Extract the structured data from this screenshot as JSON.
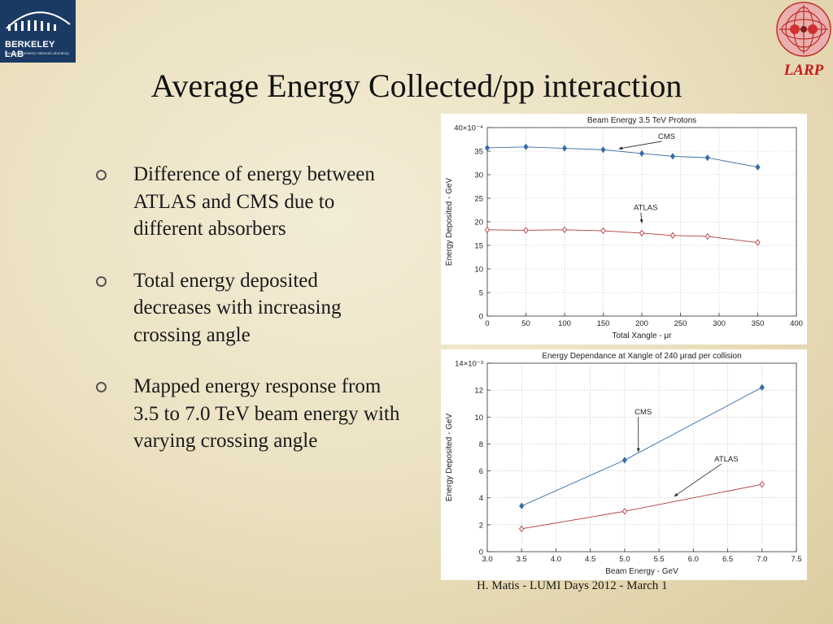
{
  "logos": {
    "berkeley_title": "BERKELEY LAB",
    "berkeley_sub": "Lawrence Berkeley National Laboratory",
    "larp": "LARP"
  },
  "slide": {
    "title": "Average Energy Collected/pp interaction",
    "bullets": [
      "Difference of energy between ATLAS and CMS due to different absorbers",
      "Total energy deposited decreases with increasing crossing angle",
      "Mapped energy response from 3.5 to 7.0 TeV beam energy with varying crossing angle"
    ],
    "footer": "H. Matis - LUMI Days 2012 -  March 1"
  },
  "chart_data": [
    {
      "type": "line",
      "title": "Beam Energy 3.5 TeV Protons",
      "xlabel": "Total Xangle - μr",
      "ylabel": "Energy Deposited - GeV",
      "xlim": [
        0,
        400
      ],
      "ylim": [
        0,
        40
      ],
      "y_exponent": "×10⁻⁴",
      "xticks": [
        0,
        50,
        100,
        150,
        200,
        250,
        300,
        350,
        400
      ],
      "yticks": [
        0,
        5,
        10,
        15,
        20,
        25,
        30,
        35,
        40
      ],
      "ytick_labels": [
        "0",
        "5",
        "10",
        "15",
        "20",
        "25",
        "30",
        "35",
        "40×10⁻⁴"
      ],
      "grid": true,
      "series": [
        {
          "name": "CMS",
          "color": "#3a6ea5",
          "marker": "diamond-filled",
          "x": [
            0,
            50,
            100,
            150,
            200,
            240,
            285,
            350
          ],
          "y": [
            35.7,
            35.9,
            35.6,
            35.3,
            34.5,
            33.9,
            33.6,
            31.6
          ]
        },
        {
          "name": "ATLAS",
          "color": "#b03a3a",
          "marker": "diamond-open",
          "x": [
            0,
            50,
            100,
            150,
            200,
            240,
            285,
            350
          ],
          "y": [
            18.3,
            18.2,
            18.3,
            18.1,
            17.6,
            17.1,
            16.9,
            15.6
          ]
        }
      ],
      "annotations": [
        {
          "text": "CMS",
          "x": 232,
          "y": 37.6,
          "arrow_to": [
            170,
            35.5
          ]
        },
        {
          "text": "ATLAS",
          "x": 205,
          "y": 22.5,
          "arrow_to": [
            200,
            19.7
          ]
        }
      ]
    },
    {
      "type": "line",
      "title": "Energy Dependance at Xangle of 240 μrad per collision",
      "xlabel": "Beam Energy - GeV",
      "ylabel": "Energy Deposited - GeV",
      "xlim": [
        3.0,
        7.5
      ],
      "ylim": [
        0,
        14
      ],
      "y_exponent": "×10⁻³",
      "xticks": [
        3.0,
        3.5,
        4.0,
        4.5,
        5.0,
        5.5,
        6.0,
        6.5,
        7.0,
        7.5
      ],
      "xtick_labels": [
        "3.0",
        "3.5",
        "4.0",
        "4.5",
        "5.0",
        "5.5",
        "6.0",
        "6.5",
        "7.0",
        "7.5"
      ],
      "yticks": [
        0,
        2,
        4,
        6,
        8,
        10,
        12,
        14
      ],
      "ytick_labels": [
        "0",
        "2",
        "4",
        "6",
        "8",
        "10",
        "12",
        "14×10⁻³"
      ],
      "grid": true,
      "series": [
        {
          "name": "CMS",
          "color": "#3a6ea5",
          "marker": "diamond-filled",
          "x": [
            3.5,
            5.0,
            7.0
          ],
          "y": [
            3.4,
            6.8,
            12.2
          ]
        },
        {
          "name": "ATLAS",
          "color": "#b03a3a",
          "marker": "diamond-open",
          "x": [
            3.5,
            5.0,
            7.0
          ],
          "y": [
            1.7,
            3.0,
            5.0
          ]
        }
      ],
      "annotations": [
        {
          "text": "CMS",
          "x": 5.27,
          "y": 10.2,
          "arrow_to": [
            5.2,
            7.4
          ]
        },
        {
          "text": "ATLAS",
          "x": 6.48,
          "y": 6.7,
          "arrow_to": [
            5.72,
            4.1
          ]
        }
      ]
    }
  ]
}
